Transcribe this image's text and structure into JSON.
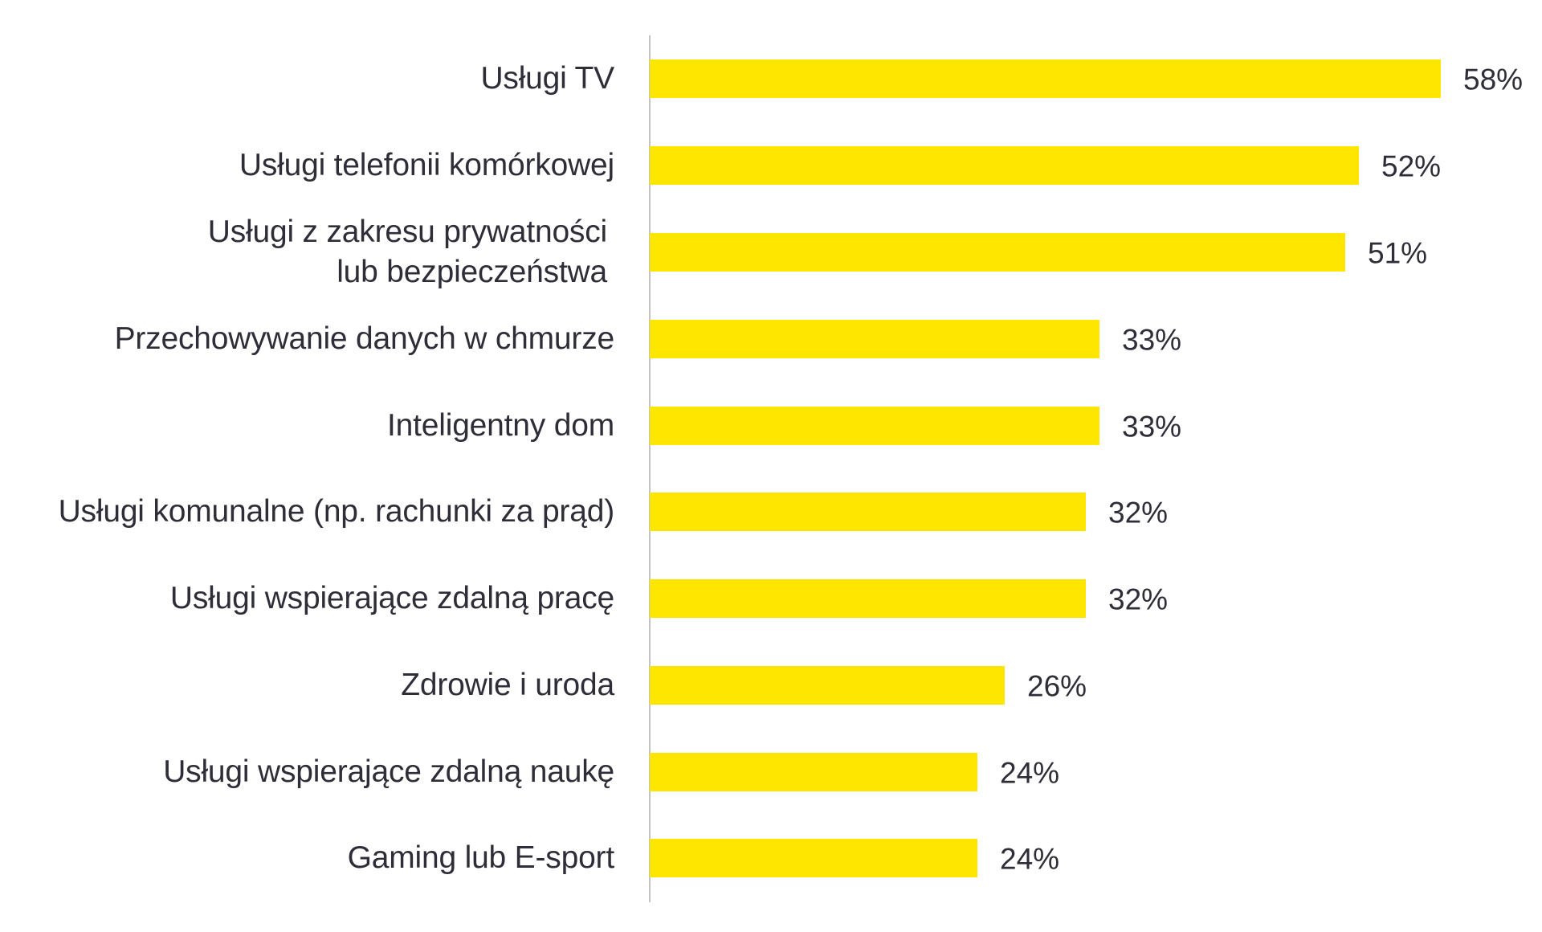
{
  "chart_data": {
    "type": "bar",
    "orientation": "horizontal",
    "title": "",
    "xlabel": "",
    "ylabel": "",
    "categories": [
      "Usługi TV",
      "Usługi telefonii komórkowej",
      "Usługi z zakresu prywatności\nlub bezpieczeństwa",
      "Przechowywanie danych w chmurze",
      "Inteligentny dom",
      "Usługi komunalne (np. rachunki za prąd)",
      "Usługi wspierające zdalną pracę",
      "Zdrowie i uroda",
      "Usługi wspierające zdalną naukę",
      "Gaming lub E-sport"
    ],
    "values": [
      58,
      52,
      51,
      33,
      33,
      32,
      32,
      26,
      24,
      24
    ],
    "value_labels": [
      "58%",
      "52%",
      "51%",
      "33%",
      "33%",
      "32%",
      "32%",
      "26%",
      "24%",
      "24%"
    ],
    "unit": "%",
    "xlim": [
      0,
      58
    ],
    "grid": false,
    "legend": null,
    "bar_color": "#FFE600",
    "axis_color": "#C4C4C4",
    "text_color": "#2E2E38"
  }
}
